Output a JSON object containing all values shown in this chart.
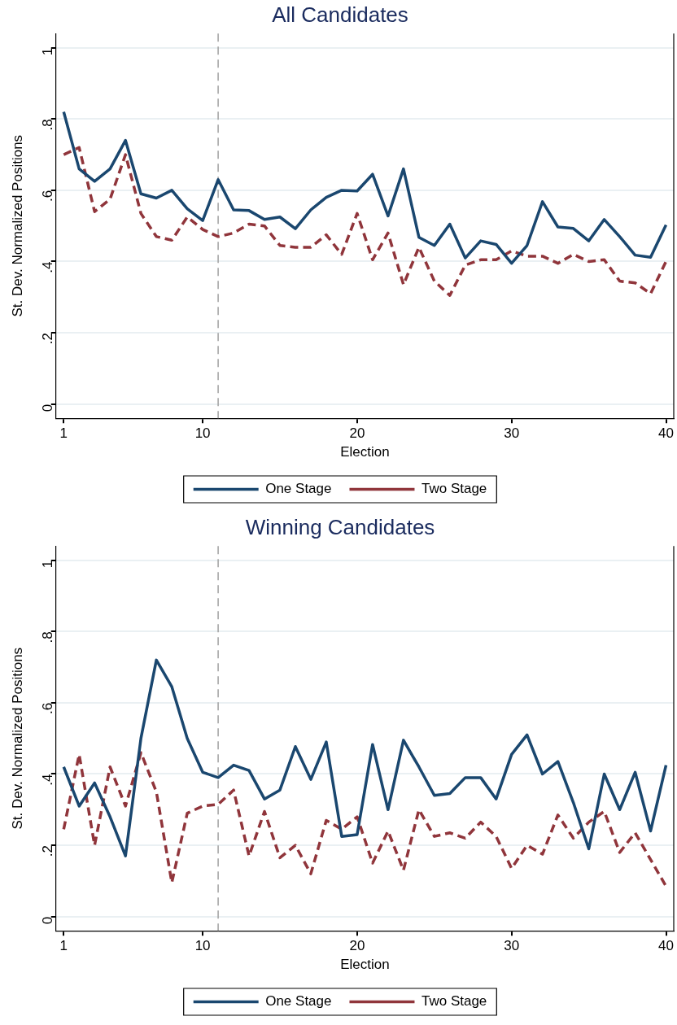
{
  "chart_data": [
    {
      "type": "line",
      "title": "All Candidates",
      "xlabel": "Election",
      "ylabel": "St. Dev. Normalized Positions",
      "x": [
        1,
        2,
        3,
        4,
        5,
        6,
        7,
        8,
        9,
        10,
        11,
        12,
        13,
        14,
        15,
        16,
        17,
        18,
        19,
        20,
        21,
        22,
        23,
        24,
        25,
        26,
        27,
        28,
        29,
        30,
        31,
        32,
        33,
        34,
        35,
        36,
        37,
        38,
        39,
        40
      ],
      "series": [
        {
          "name": "One Stage",
          "color": "#1a476f",
          "line_style": "solid",
          "values": [
            0.82,
            0.66,
            0.625,
            0.66,
            0.74,
            0.59,
            0.578,
            0.6,
            0.548,
            0.515,
            0.63,
            0.545,
            0.543,
            0.518,
            0.525,
            0.492,
            0.545,
            0.58,
            0.6,
            0.598,
            0.645,
            0.528,
            0.66,
            0.468,
            0.445,
            0.505,
            0.41,
            0.458,
            0.448,
            0.395,
            0.445,
            0.568,
            0.497,
            0.493,
            0.458,
            0.518,
            0.47,
            0.418,
            0.412,
            0.503
          ]
        },
        {
          "name": "Two Stage",
          "color": "#90353b",
          "line_style": "dashed",
          "values": [
            0.7,
            0.72,
            0.54,
            0.575,
            0.7,
            0.535,
            0.47,
            0.46,
            0.525,
            0.49,
            0.47,
            0.48,
            0.505,
            0.5,
            0.445,
            0.44,
            0.44,
            0.475,
            0.42,
            0.535,
            0.405,
            0.48,
            0.335,
            0.44,
            0.345,
            0.305,
            0.39,
            0.405,
            0.405,
            0.43,
            0.415,
            0.415,
            0.395,
            0.42,
            0.4,
            0.405,
            0.345,
            0.34,
            0.31,
            0.4
          ]
        }
      ],
      "xlim": [
        0.5,
        40.5
      ],
      "xticks": [
        1,
        10,
        20,
        30,
        40
      ],
      "ylim": [
        -0.04,
        1.04
      ],
      "yticks": [
        {
          "value": 0,
          "label": "0"
        },
        {
          "value": 0.2,
          "label": ".2"
        },
        {
          "value": 0.4,
          "label": ".4"
        },
        {
          "value": 0.6,
          "label": ".6"
        },
        {
          "value": 0.8,
          "label": ".8"
        },
        {
          "value": 1,
          "label": "1"
        }
      ],
      "ref_lines": [
        {
          "axis": "x",
          "value": 11,
          "color": "#a0a0a0",
          "line_style": "dashed"
        }
      ],
      "grid": "y",
      "legend": "bottom",
      "marker": "none"
    },
    {
      "type": "line",
      "title": "Winning Candidates",
      "xlabel": "Election",
      "ylabel": "St. Dev. Normalized Positions",
      "x": [
        1,
        2,
        3,
        4,
        5,
        6,
        7,
        8,
        9,
        10,
        11,
        12,
        13,
        14,
        15,
        16,
        17,
        18,
        19,
        20,
        21,
        22,
        23,
        24,
        25,
        26,
        27,
        28,
        29,
        30,
        31,
        32,
        33,
        34,
        35,
        36,
        37,
        38,
        39,
        40
      ],
      "series": [
        {
          "name": "One Stage",
          "color": "#1a476f",
          "line_style": "solid",
          "values": [
            0.42,
            0.31,
            0.375,
            0.28,
            0.17,
            0.5,
            0.72,
            0.645,
            0.5,
            0.405,
            0.39,
            0.425,
            0.41,
            0.33,
            0.355,
            0.477,
            0.385,
            0.49,
            0.225,
            0.23,
            0.483,
            0.3,
            0.495,
            0.42,
            0.34,
            0.345,
            0.39,
            0.39,
            0.33,
            0.455,
            0.51,
            0.4,
            0.435,
            0.32,
            0.19,
            0.4,
            0.3,
            0.405,
            0.24,
            0.425
          ]
        },
        {
          "name": "Two Stage",
          "color": "#90353b",
          "line_style": "dashed",
          "values": [
            0.245,
            0.455,
            0.2,
            0.42,
            0.31,
            0.46,
            0.35,
            0.095,
            0.29,
            0.31,
            0.315,
            0.355,
            0.17,
            0.295,
            0.165,
            0.2,
            0.12,
            0.27,
            0.245,
            0.28,
            0.15,
            0.24,
            0.13,
            0.3,
            0.225,
            0.235,
            0.22,
            0.265,
            0.225,
            0.135,
            0.2,
            0.175,
            0.285,
            0.22,
            0.265,
            0.295,
            0.18,
            0.235,
            0.16,
            0.085
          ]
        }
      ],
      "xlim": [
        0.5,
        40.5
      ],
      "xticks": [
        1,
        10,
        20,
        30,
        40
      ],
      "ylim": [
        -0.04,
        1.04
      ],
      "yticks": [
        {
          "value": 0,
          "label": "0"
        },
        {
          "value": 0.2,
          "label": ".2"
        },
        {
          "value": 0.4,
          "label": ".4"
        },
        {
          "value": 0.6,
          "label": ".6"
        },
        {
          "value": 0.8,
          "label": ".8"
        },
        {
          "value": 1,
          "label": "1"
        }
      ],
      "ref_lines": [
        {
          "axis": "x",
          "value": 11,
          "color": "#a0a0a0",
          "line_style": "dashed"
        }
      ],
      "grid": "y",
      "legend": "bottom",
      "marker": "none"
    }
  ]
}
